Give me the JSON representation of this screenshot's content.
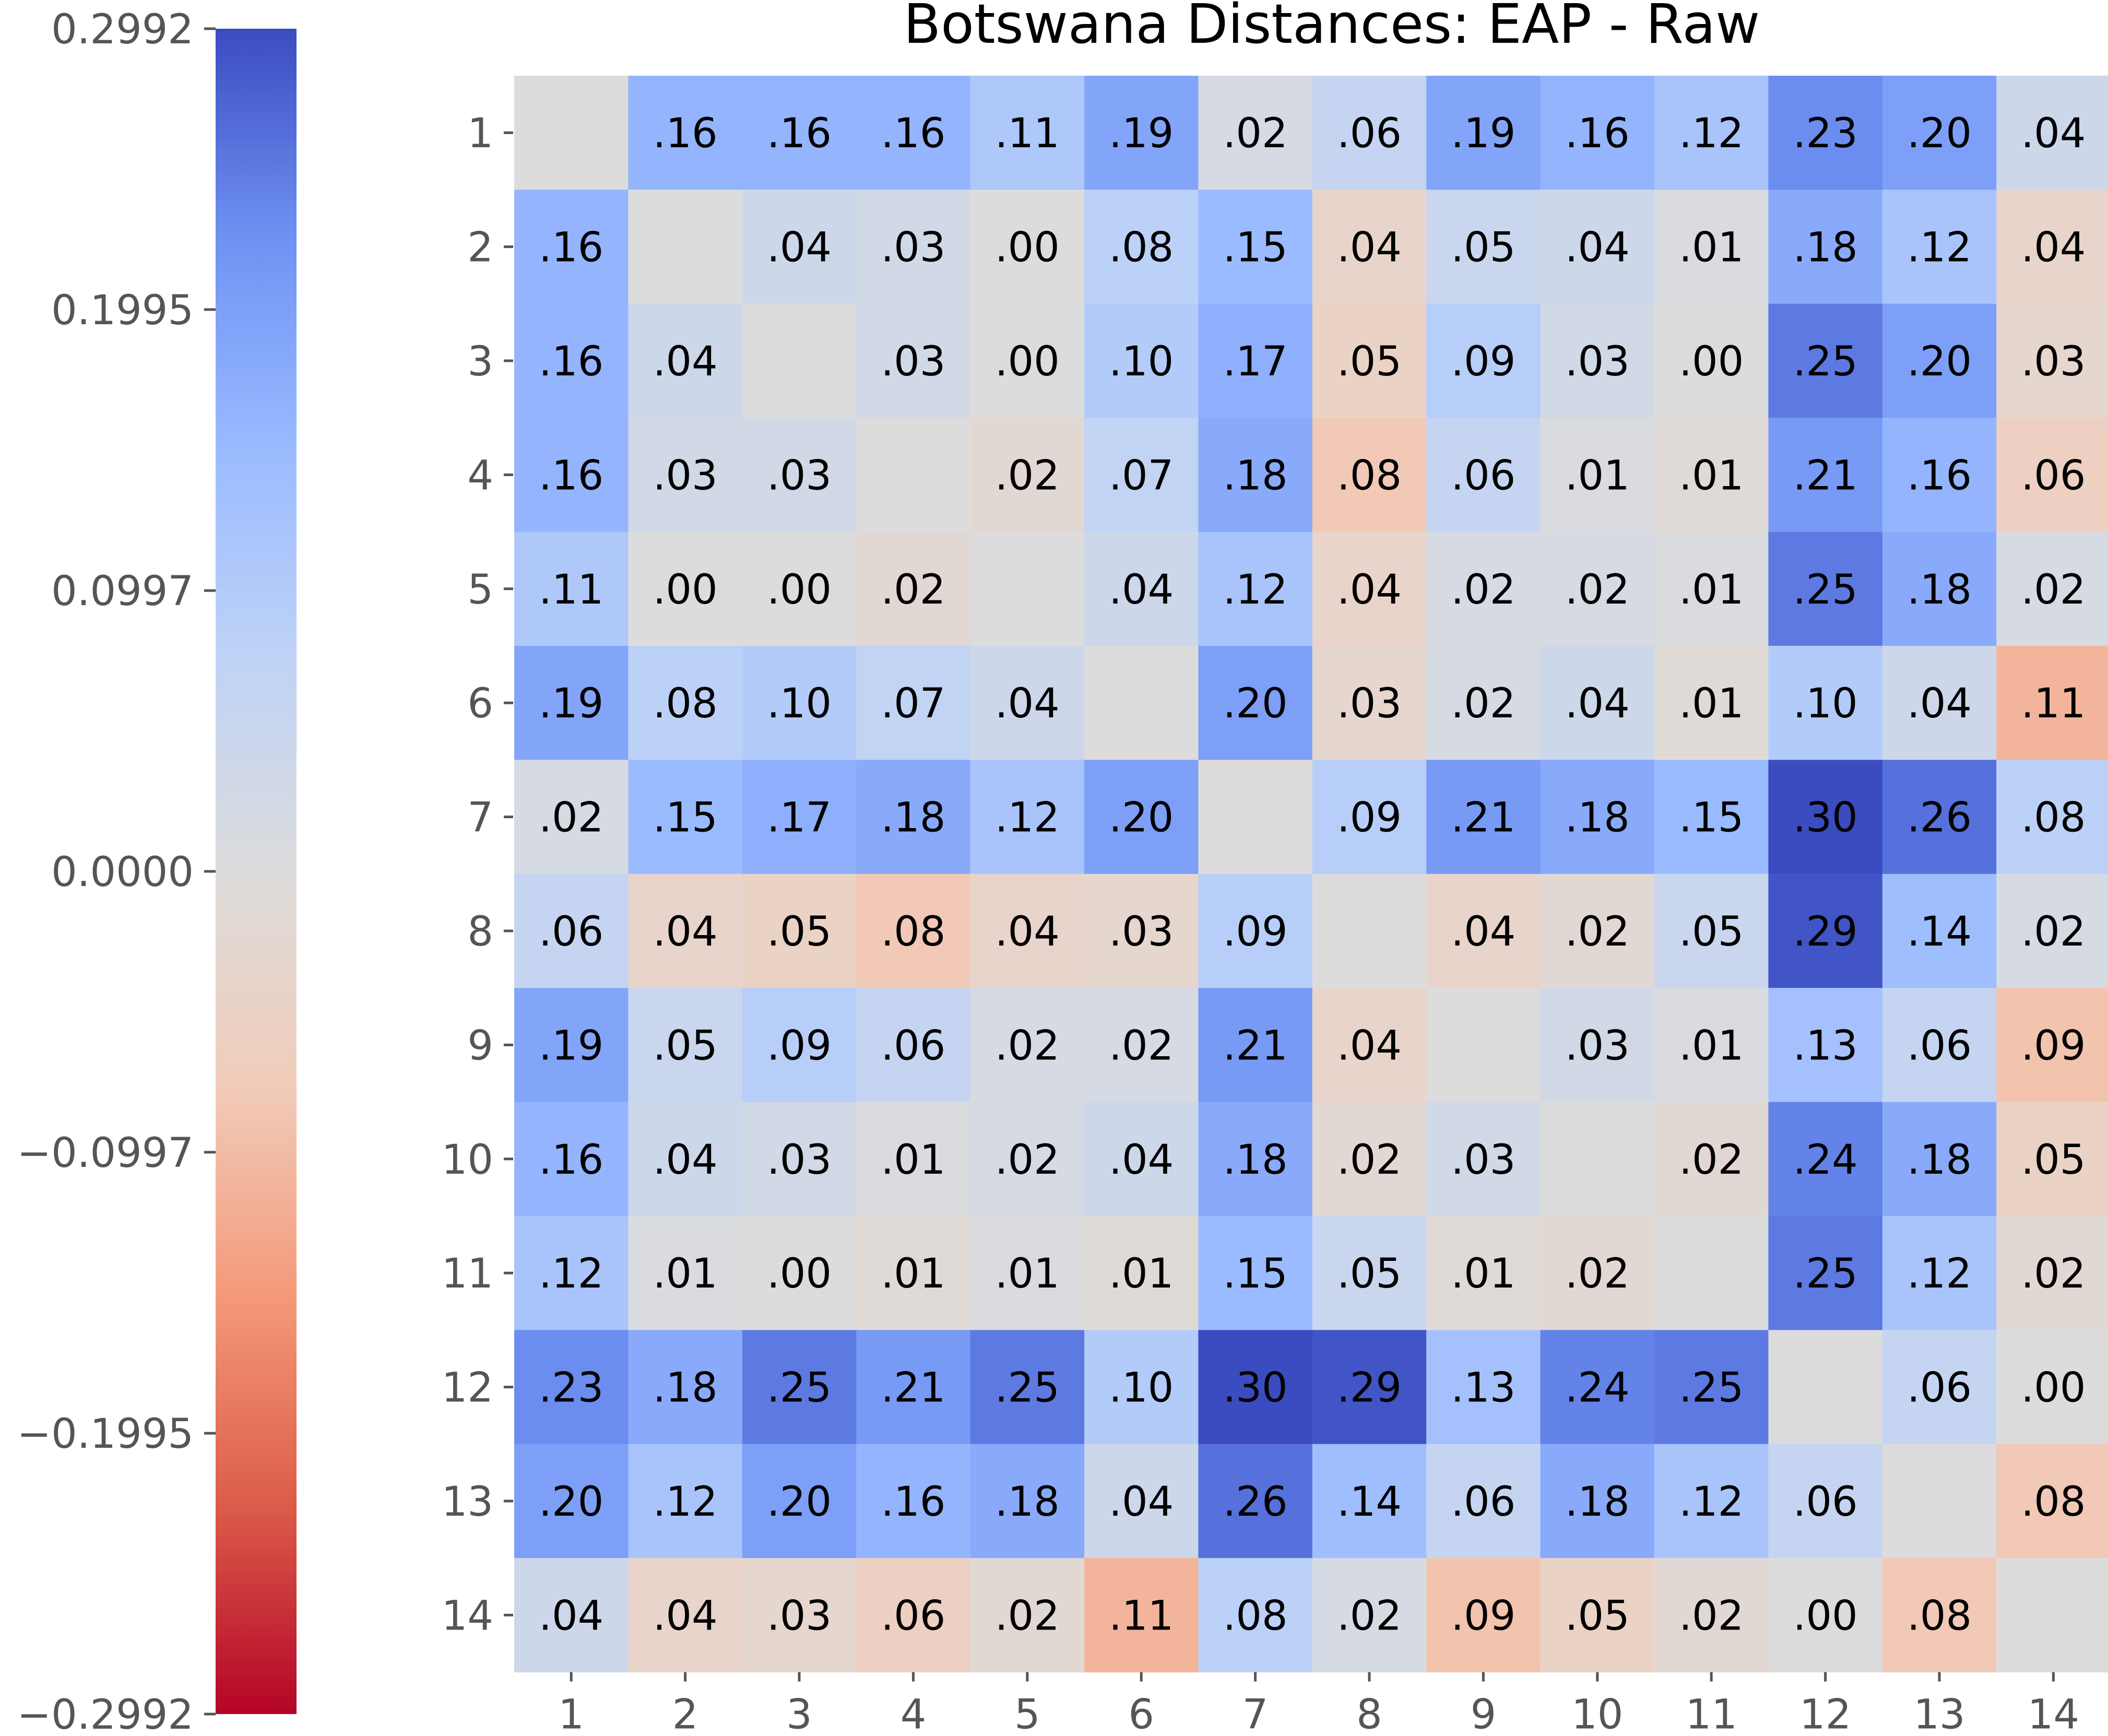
{
  "chart_data": {
    "type": "heatmap",
    "title": "Botswana Distances: EAP - Raw",
    "xlabel": "",
    "ylabel": "",
    "colormap": "coolwarm_r",
    "vmin": -0.2992,
    "vmax": 0.2992,
    "nan_color": "#dcdcdc",
    "x_categories": [
      "1",
      "2",
      "3",
      "4",
      "5",
      "6",
      "7",
      "8",
      "9",
      "10",
      "11",
      "12",
      "13",
      "14"
    ],
    "y_categories": [
      "1",
      "2",
      "3",
      "4",
      "5",
      "6",
      "7",
      "8",
      "9",
      "10",
      "11",
      "12",
      "13",
      "14"
    ],
    "colorbar_ticks": [
      "0.2992",
      "0.1995",
      "0.0997",
      "0.0000",
      "−0.0997",
      "−0.1995",
      "−0.2992"
    ],
    "colorbar_tick_values": [
      0.2992,
      0.1995,
      0.0997,
      0.0,
      -0.0997,
      -0.1995,
      -0.2992
    ],
    "values": [
      [
        null,
        0.16,
        0.16,
        0.16,
        0.11,
        0.19,
        0.02,
        0.06,
        0.19,
        0.16,
        0.12,
        0.23,
        0.2,
        0.04
      ],
      [
        0.16,
        null,
        0.04,
        0.03,
        0.0,
        0.08,
        0.15,
        -0.04,
        0.05,
        0.04,
        0.01,
        0.18,
        0.12,
        -0.04
      ],
      [
        0.16,
        0.04,
        null,
        0.03,
        0.0,
        0.1,
        0.17,
        -0.05,
        0.09,
        0.03,
        0.0,
        0.25,
        0.2,
        -0.03
      ],
      [
        0.16,
        0.03,
        0.03,
        null,
        -0.02,
        0.07,
        0.18,
        -0.08,
        0.06,
        0.01,
        -0.01,
        0.21,
        0.16,
        -0.06
      ],
      [
        0.11,
        0.0,
        0.0,
        -0.02,
        null,
        0.04,
        0.12,
        -0.04,
        0.02,
        0.02,
        0.01,
        0.25,
        0.18,
        0.02
      ],
      [
        0.19,
        0.08,
        0.1,
        0.07,
        0.04,
        null,
        0.2,
        -0.03,
        0.02,
        0.04,
        -0.01,
        0.1,
        0.04,
        -0.11
      ],
      [
        0.02,
        0.15,
        0.17,
        0.18,
        0.12,
        0.2,
        null,
        0.09,
        0.21,
        0.18,
        0.15,
        0.3,
        0.26,
        0.08
      ],
      [
        0.06,
        -0.04,
        -0.05,
        -0.08,
        -0.04,
        -0.03,
        0.09,
        null,
        -0.04,
        -0.02,
        0.05,
        0.29,
        0.14,
        0.02
      ],
      [
        0.19,
        0.05,
        0.09,
        0.06,
        0.02,
        0.02,
        0.21,
        -0.04,
        null,
        0.03,
        0.01,
        0.13,
        0.06,
        -0.09
      ],
      [
        0.16,
        0.04,
        0.03,
        0.01,
        0.02,
        0.04,
        0.18,
        -0.02,
        0.03,
        null,
        -0.02,
        0.24,
        0.18,
        -0.05
      ],
      [
        0.12,
        0.01,
        0.0,
        -0.01,
        0.01,
        -0.01,
        0.15,
        0.05,
        -0.01,
        -0.02,
        null,
        0.25,
        0.12,
        -0.02
      ],
      [
        0.23,
        0.18,
        0.25,
        0.21,
        0.25,
        0.1,
        0.3,
        0.29,
        0.13,
        0.24,
        0.25,
        null,
        0.06,
        0.0
      ],
      [
        0.2,
        0.12,
        0.2,
        0.16,
        0.18,
        0.04,
        0.26,
        0.14,
        0.06,
        0.18,
        0.12,
        0.06,
        null,
        -0.08
      ],
      [
        0.04,
        -0.04,
        -0.03,
        -0.06,
        -0.02,
        -0.11,
        0.08,
        0.02,
        -0.09,
        -0.05,
        -0.02,
        0.0,
        -0.08,
        null
      ]
    ],
    "cell_labels": [
      [
        "",
        ".16",
        ".16",
        ".16",
        ".11",
        ".19",
        ".02",
        ".06",
        ".19",
        ".16",
        ".12",
        ".23",
        ".20",
        ".04"
      ],
      [
        ".16",
        "",
        ".04",
        ".03",
        ".00",
        ".08",
        ".15",
        ".04",
        ".05",
        ".04",
        ".01",
        ".18",
        ".12",
        ".04"
      ],
      [
        ".16",
        ".04",
        "",
        ".03",
        ".00",
        ".10",
        ".17",
        ".05",
        ".09",
        ".03",
        ".00",
        ".25",
        ".20",
        ".03"
      ],
      [
        ".16",
        ".03",
        ".03",
        "",
        ".02",
        ".07",
        ".18",
        ".08",
        ".06",
        ".01",
        ".01",
        ".21",
        ".16",
        ".06"
      ],
      [
        ".11",
        ".00",
        ".00",
        ".02",
        "",
        ".04",
        ".12",
        ".04",
        ".02",
        ".02",
        ".01",
        ".25",
        ".18",
        ".02"
      ],
      [
        ".19",
        ".08",
        ".10",
        ".07",
        ".04",
        "",
        ".20",
        ".03",
        ".02",
        ".04",
        ".01",
        ".10",
        ".04",
        ".11"
      ],
      [
        ".02",
        ".15",
        ".17",
        ".18",
        ".12",
        ".20",
        "",
        ".09",
        ".21",
        ".18",
        ".15",
        ".30",
        ".26",
        ".08"
      ],
      [
        ".06",
        ".04",
        ".05",
        ".08",
        ".04",
        ".03",
        ".09",
        "",
        ".04",
        ".02",
        ".05",
        ".29",
        ".14",
        ".02"
      ],
      [
        ".19",
        ".05",
        ".09",
        ".06",
        ".02",
        ".02",
        ".21",
        ".04",
        "",
        ".03",
        ".01",
        ".13",
        ".06",
        ".09"
      ],
      [
        ".16",
        ".04",
        ".03",
        ".01",
        ".02",
        ".04",
        ".18",
        ".02",
        ".03",
        "",
        ".02",
        ".24",
        ".18",
        ".05"
      ],
      [
        ".12",
        ".01",
        ".00",
        ".01",
        ".01",
        ".01",
        ".15",
        ".05",
        ".01",
        ".02",
        "",
        ".25",
        ".12",
        ".02"
      ],
      [
        ".23",
        ".18",
        ".25",
        ".21",
        ".25",
        ".10",
        ".30",
        ".29",
        ".13",
        ".24",
        ".25",
        "",
        ".06",
        ".00"
      ],
      [
        ".20",
        ".12",
        ".20",
        ".16",
        ".18",
        ".04",
        ".26",
        ".14",
        ".06",
        ".18",
        ".12",
        ".06",
        "",
        ".08"
      ],
      [
        ".04",
        ".04",
        ".03",
        ".06",
        ".02",
        ".11",
        ".08",
        ".02",
        ".09",
        ".05",
        ".02",
        ".00",
        ".08",
        ""
      ]
    ]
  }
}
